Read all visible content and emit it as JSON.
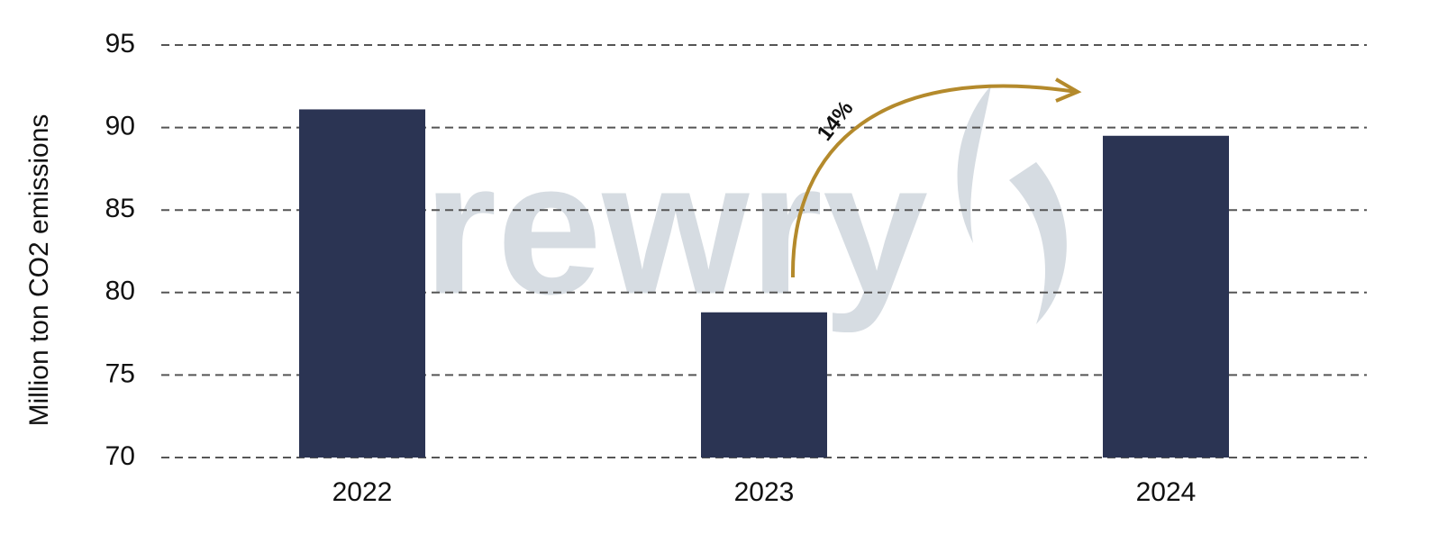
{
  "chart_data": {
    "type": "bar",
    "y_label": "Million ton CO2 emissions",
    "categories": [
      "2022",
      "2023",
      "2024"
    ],
    "values": [
      91.1,
      78.8,
      89.5
    ],
    "color": "#2b3453",
    "ylim": [
      70,
      95
    ],
    "yticks": [
      70,
      75,
      80,
      85,
      90,
      95
    ],
    "grid": true,
    "annotation": "14%",
    "watermark": "Drewry"
  }
}
